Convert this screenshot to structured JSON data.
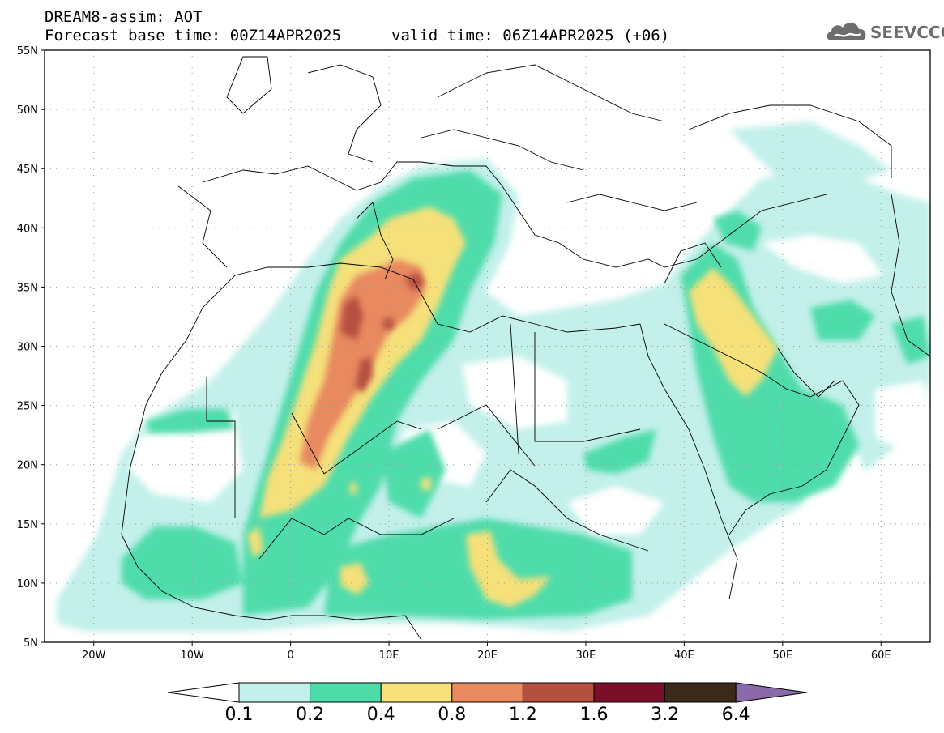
{
  "header": {
    "title": "DREAM8-assim: AOT",
    "base_time": "Forecast base time: 00Z14APR2025",
    "valid_time": "valid time: 06Z14APR2025 (+06)"
  },
  "logo": {
    "text": "SEEVCCC",
    "icon": "cloud-icon"
  },
  "map": {
    "lon_range": [
      -25,
      65
    ],
    "lat_range": [
      5,
      55
    ],
    "lat_labels": [
      "55N",
      "50N",
      "45N",
      "40N",
      "35N",
      "30N",
      "25N",
      "20N",
      "15N",
      "10N",
      "5N"
    ],
    "lat_values": [
      55,
      50,
      45,
      40,
      35,
      30,
      25,
      20,
      15,
      10,
      5
    ],
    "lon_labels": [
      "20W",
      "10W",
      "0",
      "10E",
      "20E",
      "30E",
      "40E",
      "50E",
      "60E"
    ],
    "lon_values": [
      -20,
      -10,
      0,
      10,
      20,
      30,
      40,
      50,
      60
    ],
    "grid": true
  },
  "colorbar": {
    "labels": [
      "0.1",
      "0.2",
      "0.4",
      "0.8",
      "1.2",
      "1.6",
      "3.2",
      "6.4"
    ],
    "colors": [
      "#c3f0ea",
      "#4fdcab",
      "#f5e07a",
      "#e8895f",
      "#b55040",
      "#7b0f2a",
      "#3b2a1a"
    ],
    "under_color": "#ffffff",
    "over_color": "#8a6aa8"
  }
}
